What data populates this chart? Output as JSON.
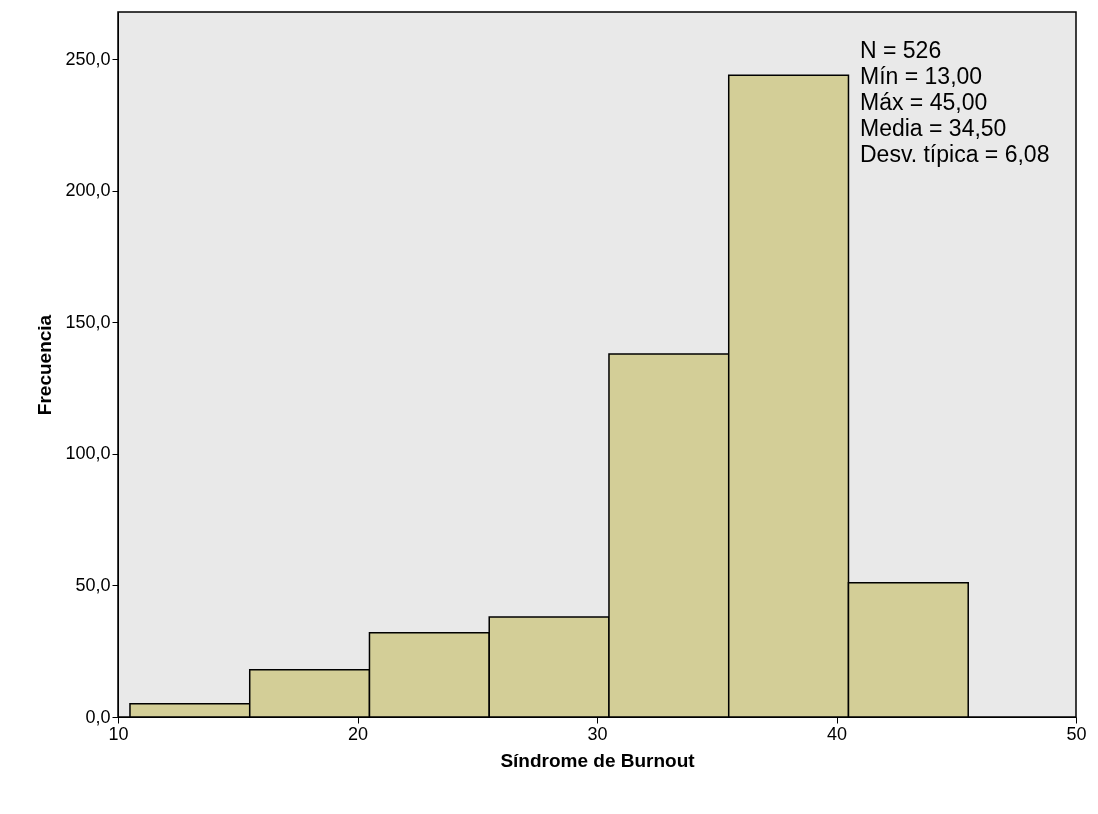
{
  "chart_data": {
    "type": "histogram",
    "xlabel": "Síndrome de Burnout",
    "ylabel": "Frecuencia",
    "bins": [
      10.5,
      15.5,
      20.5,
      25.5,
      30.5,
      35.5,
      40.5,
      45.5
    ],
    "values": [
      5,
      18,
      32,
      38,
      138,
      244,
      51
    ],
    "color": "#d3ce97",
    "xlim": [
      10,
      50
    ],
    "xticks": [
      10,
      20,
      30,
      40,
      50
    ],
    "ylim": [
      0,
      268
    ],
    "yticks": [
      {
        "value": 0,
        "label": "0,0"
      },
      {
        "value": 50,
        "label": "50,0"
      },
      {
        "value": 100,
        "label": "100,0"
      },
      {
        "value": 150,
        "label": "150,0"
      },
      {
        "value": 200,
        "label": "200,0"
      },
      {
        "value": 250,
        "label": "250,0"
      }
    ],
    "grid": false,
    "annotations": [
      "N = 526",
      "Mín = 13,00",
      "Máx = 45,00",
      "Media = 34,50",
      "Desv. típica = 6,08"
    ]
  }
}
